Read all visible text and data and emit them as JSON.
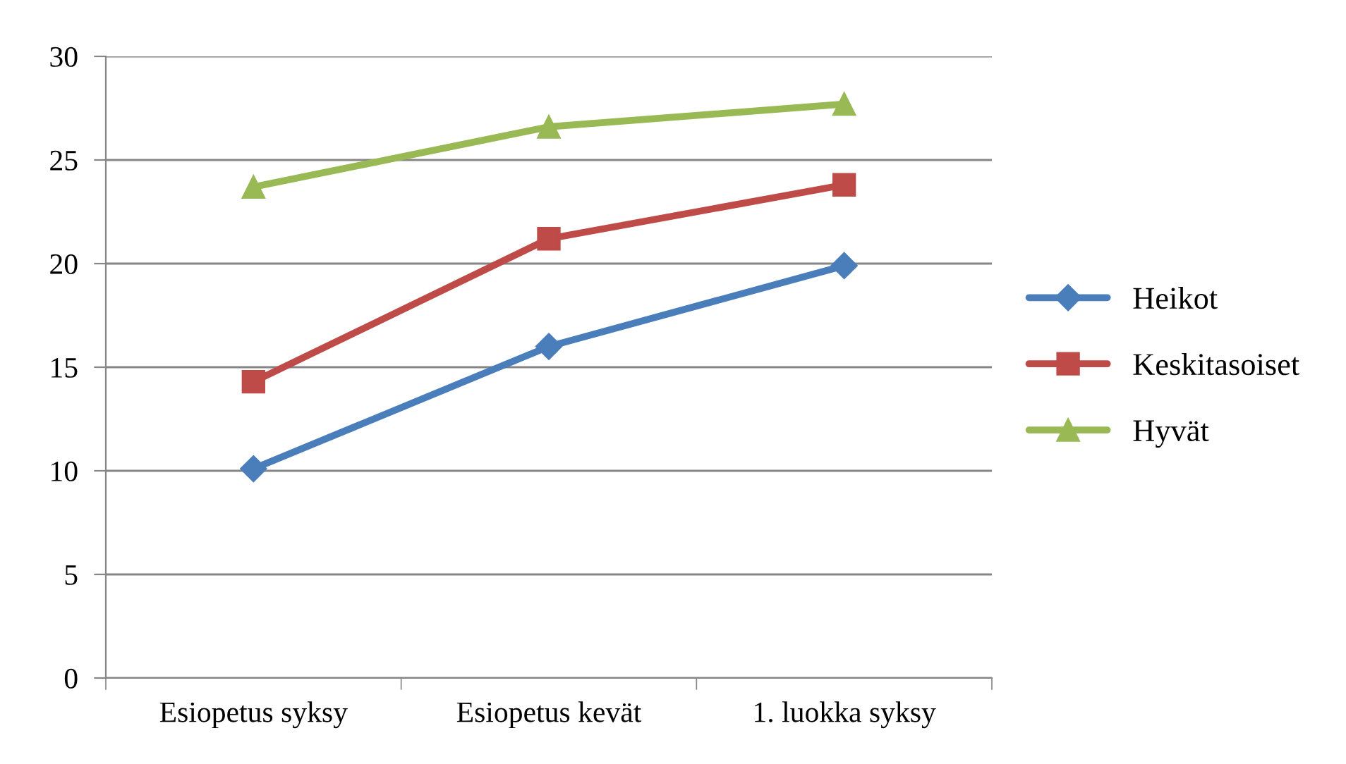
{
  "chart_data": {
    "type": "line",
    "categories": [
      "Esiopetus syksy",
      "Esiopetus kevät",
      "1. luokka syksy"
    ],
    "series": [
      {
        "name": "Heikot",
        "color": "#4a7ebb",
        "marker": "diamond",
        "values": [
          10.1,
          16.0,
          19.9
        ]
      },
      {
        "name": "Keskitasoiset",
        "color": "#be4b48",
        "marker": "square",
        "values": [
          14.3,
          21.2,
          23.8
        ]
      },
      {
        "name": "Hyvät",
        "color": "#98b954",
        "marker": "triangle",
        "values": [
          23.7,
          26.6,
          27.7
        ]
      }
    ],
    "ylim": [
      0,
      30
    ],
    "yticks": [
      0,
      5,
      10,
      15,
      20,
      25,
      30
    ],
    "grid": "y",
    "legend": "right"
  }
}
